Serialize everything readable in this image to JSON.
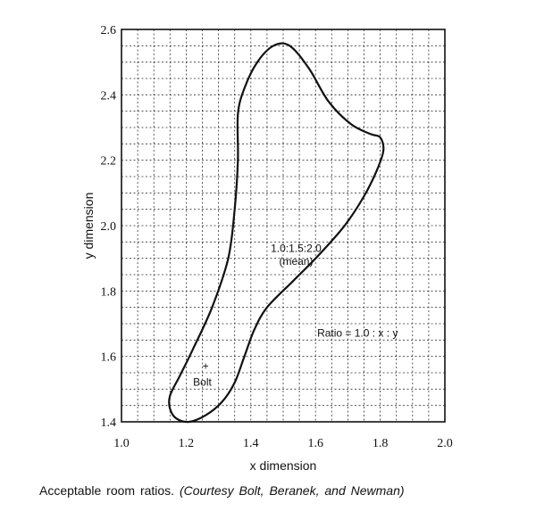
{
  "chart_data": {
    "type": "line",
    "xlabel": "x dimension",
    "ylabel": "y dimension",
    "xlim": [
      1.0,
      2.0
    ],
    "ylim": [
      1.4,
      2.6
    ],
    "x_ticks": [
      "1.0",
      "1.2",
      "1.4",
      "1.6",
      "1.8",
      "2.0"
    ],
    "y_ticks": [
      "1.4",
      "1.6",
      "1.8",
      "2.0",
      "2.2",
      "2.4",
      "2.6"
    ],
    "grid": true,
    "series": [
      {
        "closed": true,
        "points": [
          [
            1.21,
            1.4
          ],
          [
            1.26,
            1.42
          ],
          [
            1.31,
            1.46
          ],
          [
            1.35,
            1.52
          ],
          [
            1.38,
            1.6
          ],
          [
            1.41,
            1.68
          ],
          [
            1.45,
            1.75
          ],
          [
            1.53,
            1.83
          ],
          [
            1.61,
            1.91
          ],
          [
            1.69,
            2.0
          ],
          [
            1.75,
            2.09
          ],
          [
            1.79,
            2.17
          ],
          [
            1.81,
            2.23
          ],
          [
            1.8,
            2.27
          ],
          [
            1.77,
            2.28
          ],
          [
            1.71,
            2.31
          ],
          [
            1.64,
            2.38
          ],
          [
            1.58,
            2.48
          ],
          [
            1.52,
            2.55
          ],
          [
            1.47,
            2.55
          ],
          [
            1.42,
            2.5
          ],
          [
            1.38,
            2.42
          ],
          [
            1.36,
            2.34
          ],
          [
            1.36,
            2.2
          ],
          [
            1.35,
            2.05
          ],
          [
            1.33,
            1.9
          ],
          [
            1.28,
            1.75
          ],
          [
            1.22,
            1.62
          ],
          [
            1.18,
            1.54
          ],
          [
            1.15,
            1.48
          ],
          [
            1.15,
            1.44
          ],
          [
            1.17,
            1.41
          ]
        ]
      }
    ],
    "annotations": [
      {
        "text": "1.0:1.5:2.0",
        "x": 1.54,
        "y": 1.92
      },
      {
        "text": "(mean)",
        "x": 1.54,
        "y": 1.88
      },
      {
        "text": "Ratio = 1.0 : x : y",
        "x": 1.73,
        "y": 1.66
      },
      {
        "text": "+",
        "x": 1.26,
        "y": 1.56
      },
      {
        "text": "Bolt",
        "x": 1.25,
        "y": 1.51
      }
    ]
  },
  "caption": {
    "plain": "Acceptable room ratios.",
    "italic": "(Courtesy Bolt, Beranek, and Newman)"
  }
}
